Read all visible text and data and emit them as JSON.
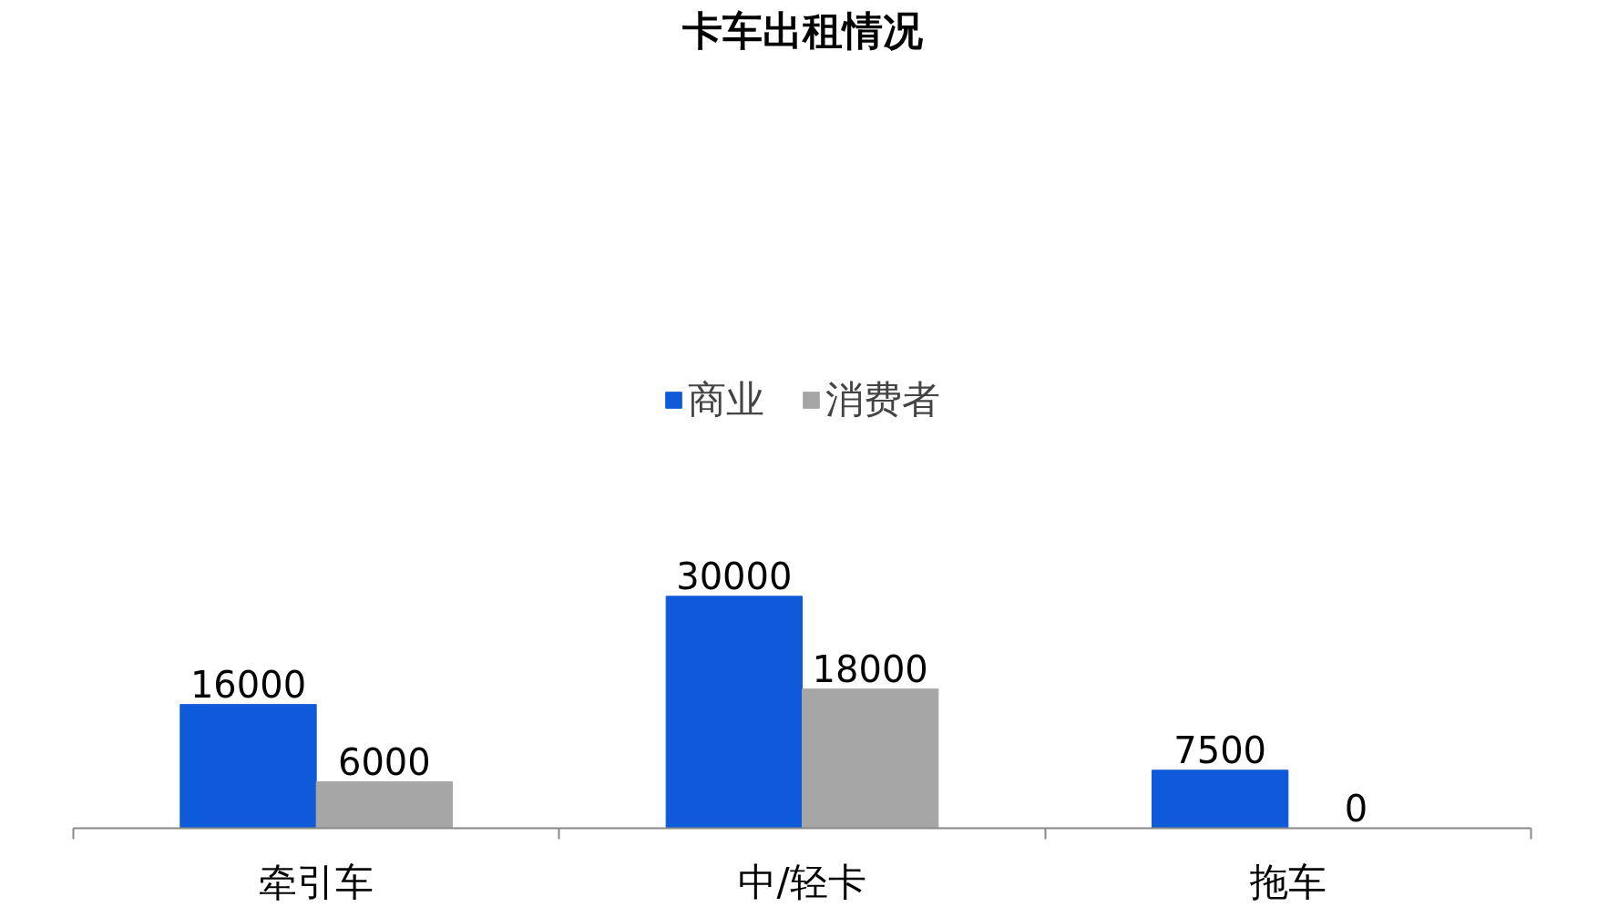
{
  "chart_data": {
    "type": "bar",
    "title": "卡车出租情况",
    "categories": [
      "牵引车",
      "中/轻卡",
      "拖车"
    ],
    "series": [
      {
        "name": "商业",
        "color": "#0f5ad8",
        "values": [
          16000,
          30000,
          7500
        ]
      },
      {
        "name": "消费者",
        "color": "#a6a6a6",
        "values": [
          6000,
          18000,
          0
        ]
      }
    ],
    "data_labels": true,
    "legend": "top",
    "grid": false
  }
}
